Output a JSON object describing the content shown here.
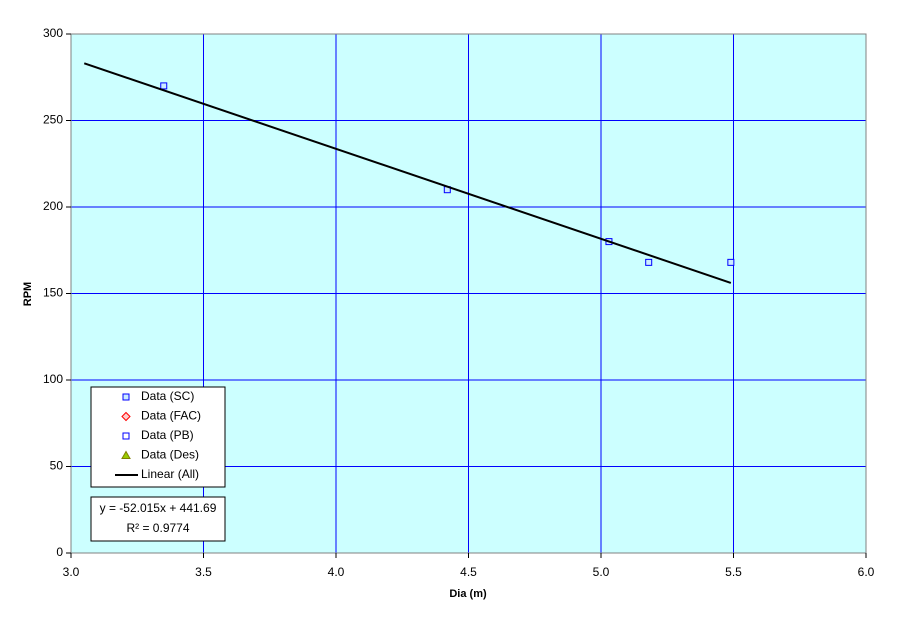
{
  "chart_data": {
    "type": "scatter",
    "x_label": "Dia (m)",
    "y_label": "RPM",
    "xlim": [
      3.0,
      6.0
    ],
    "ylim": [
      0,
      300
    ],
    "xticks": [
      {
        "value": 3,
        "label": "3.0"
      },
      {
        "value": 3.5,
        "label": "3.5"
      },
      {
        "value": 4,
        "label": "4.0"
      },
      {
        "value": 4.5,
        "label": "4.5"
      },
      {
        "value": 5,
        "label": "5.0"
      },
      {
        "value": 5.5,
        "label": "5.5"
      },
      {
        "value": 6,
        "label": "6.0"
      }
    ],
    "yticks": [
      0,
      50,
      100,
      150,
      200,
      250,
      300
    ],
    "grid": true,
    "grid_color": "#0000ff",
    "plot_background": "#ccffff",
    "legend": "lower left",
    "series": [
      {
        "name": "Data (SC)",
        "marker": "square",
        "color": "#0000ff",
        "fill": "#ccecff",
        "x": [
          3.35,
          4.42,
          5.03,
          5.18,
          5.49
        ],
        "values": [
          270,
          210,
          180,
          168,
          168
        ]
      },
      {
        "name": "Data (FAC)",
        "marker": "diamond",
        "color": "#ff0000",
        "fill": "#ffcccc",
        "x": [],
        "values": []
      },
      {
        "name": "Data (PB)",
        "marker": "square",
        "color": "#0000ff",
        "fill": "#ffffff",
        "x": [],
        "values": []
      },
      {
        "name": "Data (Des)",
        "marker": "triangle",
        "color": "#808000",
        "fill": "#99cc00",
        "x": [],
        "values": []
      },
      {
        "name": "Linear (All)",
        "marker": "line",
        "color": "#000000",
        "x": [
          3.05,
          5.49
        ],
        "values": [
          283.04,
          156.13
        ]
      }
    ],
    "annotation": {
      "equation": "y = -52.015x + 441.69",
      "r_squared": "R² = 0.9774"
    }
  }
}
